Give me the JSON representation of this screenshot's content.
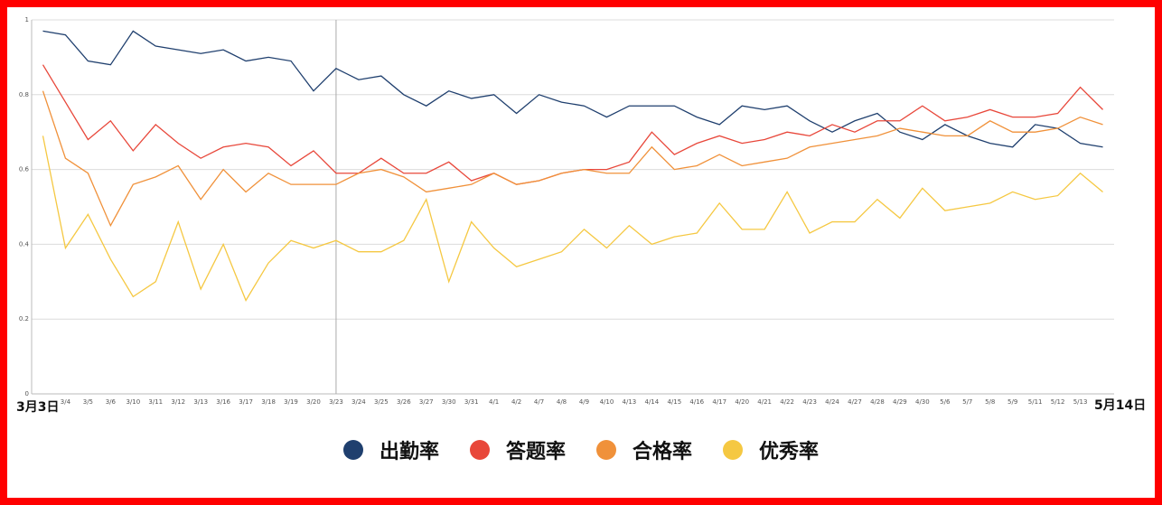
{
  "chart_data": {
    "type": "line",
    "categories": [
      null,
      "3/4",
      "3/5",
      "3/6",
      "3/10",
      "3/11",
      "3/12",
      "3/13",
      "3/16",
      "3/17",
      "3/18",
      "3/19",
      "3/20",
      "3/23",
      "3/24",
      "3/25",
      "3/26",
      "3/27",
      "3/30",
      "3/31",
      "4/1",
      "4/2",
      "4/7",
      "4/8",
      "4/9",
      "4/10",
      "4/13",
      "4/14",
      "4/15",
      "4/16",
      "4/17",
      "4/20",
      "4/21",
      "4/22",
      "4/23",
      "4/24",
      "4/27",
      "4/28",
      "4/29",
      "4/30",
      "5/6",
      "5/7",
      "5/8",
      "5/9",
      "5/11",
      "5/12",
      "5/13",
      null
    ],
    "x_start_label": "3月3日",
    "x_end_label": "5月14日",
    "ylim": [
      0,
      1
    ],
    "yticks": [
      0,
      0.2,
      0.4,
      0.6,
      0.8,
      1
    ],
    "grid": true,
    "highlight_index": 13,
    "series": [
      {
        "name": "出勤率",
        "color": "#1f3f6e",
        "values": [
          0.97,
          0.96,
          0.89,
          0.88,
          0.97,
          0.93,
          0.92,
          0.91,
          0.92,
          0.89,
          0.9,
          0.89,
          0.81,
          0.87,
          0.84,
          0.85,
          0.8,
          0.77,
          0.81,
          0.79,
          0.8,
          0.75,
          0.8,
          0.78,
          0.77,
          0.74,
          0.77,
          0.77,
          0.77,
          0.74,
          0.72,
          0.77,
          0.76,
          0.77,
          0.73,
          0.7,
          0.73,
          0.75,
          0.7,
          0.68,
          0.72,
          0.69,
          0.67,
          0.66,
          0.72,
          0.71,
          0.67,
          0.66
        ]
      },
      {
        "name": "答题率",
        "color": "#e8473a",
        "values": [
          0.88,
          0.78,
          0.68,
          0.73,
          0.65,
          0.72,
          0.67,
          0.63,
          0.66,
          0.67,
          0.66,
          0.61,
          0.65,
          0.59,
          0.59,
          0.63,
          0.59,
          0.59,
          0.62,
          0.57,
          0.59,
          0.56,
          0.57,
          0.59,
          0.6,
          0.6,
          0.62,
          0.7,
          0.64,
          0.67,
          0.69,
          0.67,
          0.68,
          0.7,
          0.69,
          0.72,
          0.7,
          0.73,
          0.73,
          0.77,
          0.73,
          0.74,
          0.76,
          0.74,
          0.74,
          0.75,
          0.82,
          0.76
        ]
      },
      {
        "name": "合格率",
        "color": "#f0913a",
        "values": [
          0.81,
          0.63,
          0.59,
          0.45,
          0.56,
          0.58,
          0.61,
          0.52,
          0.6,
          0.54,
          0.59,
          0.56,
          0.56,
          0.56,
          0.59,
          0.6,
          0.58,
          0.54,
          0.55,
          0.56,
          0.59,
          0.56,
          0.57,
          0.59,
          0.6,
          0.59,
          0.59,
          0.66,
          0.6,
          0.61,
          0.64,
          0.61,
          0.62,
          0.63,
          0.66,
          0.67,
          0.68,
          0.69,
          0.71,
          0.7,
          0.69,
          0.69,
          0.73,
          0.7,
          0.7,
          0.71,
          0.74,
          0.72
        ]
      },
      {
        "name": "优秀率",
        "color": "#f5c842",
        "values": [
          0.69,
          0.39,
          0.48,
          0.36,
          0.26,
          0.3,
          0.46,
          0.28,
          0.4,
          0.25,
          0.35,
          0.41,
          0.39,
          0.41,
          0.38,
          0.38,
          0.41,
          0.52,
          0.3,
          0.46,
          0.39,
          0.34,
          0.36,
          0.38,
          0.44,
          0.39,
          0.45,
          0.4,
          0.42,
          0.43,
          0.51,
          0.44,
          0.44,
          0.54,
          0.43,
          0.46,
          0.46,
          0.52,
          0.47,
          0.55,
          0.49,
          0.5,
          0.51,
          0.54,
          0.52,
          0.53,
          0.59,
          0.54
        ]
      }
    ]
  }
}
